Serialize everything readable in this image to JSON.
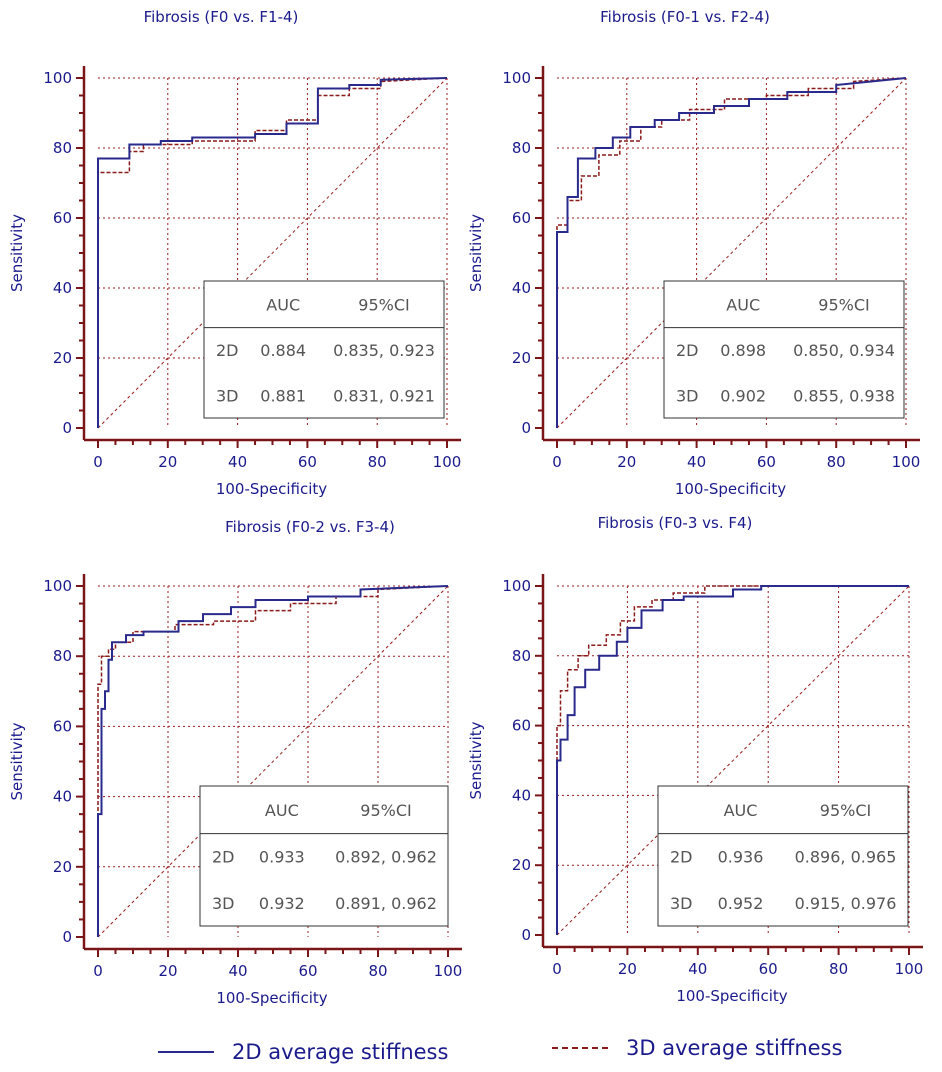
{
  "chart_data": [
    {
      "type": "line",
      "title": "Fibrosis (F0 vs. F1-4)",
      "xlabel": "100-Specificity",
      "ylabel": "Sensitivity",
      "xlim": [
        0,
        100
      ],
      "ylim": [
        0,
        100
      ],
      "xticks": [
        "0",
        "20",
        "40",
        "60",
        "80",
        "100"
      ],
      "yticks": [
        "0",
        "20",
        "40",
        "60",
        "80",
        "100"
      ],
      "grid": true,
      "series": [
        {
          "name": "2D average stiffness",
          "x": [
            0,
            0,
            9,
            9,
            18,
            18,
            27,
            27,
            45,
            45,
            54,
            54,
            63,
            63,
            72,
            72,
            81,
            81,
            100
          ],
          "y": [
            0,
            77,
            77,
            81,
            81,
            82,
            82,
            83,
            83,
            84,
            84,
            87,
            87,
            97,
            97,
            98,
            98,
            99.5,
            100
          ]
        },
        {
          "name": "3D average stiffness",
          "x": [
            0,
            0,
            9,
            9,
            13,
            13,
            27,
            27,
            45,
            45,
            54,
            54,
            63,
            63,
            72,
            72,
            81,
            81,
            100
          ],
          "y": [
            0,
            73,
            73,
            79,
            79,
            81,
            81,
            82,
            82,
            85,
            85,
            88,
            88,
            95,
            95,
            97,
            97,
            99,
            100
          ]
        }
      ],
      "auc_table": {
        "headers": [
          "",
          "AUC",
          "95%CI"
        ],
        "rows": [
          [
            "2D",
            "0.884",
            "0.835, 0.923"
          ],
          [
            "3D",
            "0.881",
            "0.831, 0.921"
          ]
        ]
      }
    },
    {
      "type": "line",
      "title": "Fibrosis (F0-1 vs. F2-4)",
      "xlabel": "100-Specificity",
      "ylabel": "Sensitivity",
      "xlim": [
        0,
        100
      ],
      "ylim": [
        0,
        100
      ],
      "xticks": [
        "0",
        "20",
        "40",
        "60",
        "80",
        "100"
      ],
      "yticks": [
        "0",
        "20",
        "40",
        "60",
        "80",
        "100"
      ],
      "grid": true,
      "series": [
        {
          "name": "2D average stiffness",
          "x": [
            0,
            0,
            3,
            3,
            6,
            6,
            11,
            11,
            16,
            16,
            21,
            21,
            28,
            28,
            35,
            35,
            45,
            45,
            55,
            55,
            66,
            66,
            80,
            80,
            100
          ],
          "y": [
            0,
            56,
            56,
            66,
            66,
            77,
            77,
            80,
            80,
            83,
            83,
            86,
            86,
            88,
            88,
            90,
            90,
            92,
            92,
            94,
            94,
            96,
            96,
            98,
            100
          ]
        },
        {
          "name": "3D average stiffness",
          "x": [
            0,
            0,
            3,
            3,
            7,
            7,
            12,
            12,
            18,
            18,
            24,
            24,
            30,
            30,
            38,
            38,
            48,
            48,
            60,
            60,
            72,
            72,
            85,
            85,
            100
          ],
          "y": [
            0,
            58,
            58,
            65,
            65,
            72,
            72,
            78,
            78,
            82,
            82,
            86,
            86,
            88,
            88,
            91,
            91,
            94,
            94,
            95,
            95,
            97,
            97,
            99,
            100
          ]
        }
      ],
      "auc_table": {
        "headers": [
          "",
          "AUC",
          "95%CI"
        ],
        "rows": [
          [
            "2D",
            "0.898",
            "0.850, 0.934"
          ],
          [
            "3D",
            "0.902",
            "0.855, 0.938"
          ]
        ]
      }
    },
    {
      "type": "line",
      "title": "Fibrosis (F0-2 vs. F3-4)",
      "xlabel": "100-Specificity",
      "ylabel": "Sensitivity",
      "xlim": [
        0,
        100
      ],
      "ylim": [
        0,
        100
      ],
      "xticks": [
        "0",
        "20",
        "40",
        "60",
        "80",
        "100"
      ],
      "yticks": [
        "0",
        "20",
        "40",
        "60",
        "80",
        "100"
      ],
      "grid": true,
      "series": [
        {
          "name": "2D average stiffness",
          "x": [
            0,
            0,
            1,
            1,
            2,
            2,
            3,
            3,
            4,
            4,
            8,
            8,
            13,
            13,
            23,
            23,
            30,
            30,
            38,
            38,
            45,
            45,
            60,
            60,
            75,
            75,
            100
          ],
          "y": [
            0,
            35,
            35,
            65,
            65,
            70,
            70,
            79,
            79,
            84,
            84,
            86,
            86,
            87,
            87,
            90,
            90,
            92,
            92,
            94,
            94,
            96,
            96,
            97,
            97,
            99,
            100
          ]
        },
        {
          "name": "3D average stiffness",
          "x": [
            0,
            0,
            1,
            1,
            3,
            3,
            5,
            5,
            10,
            10,
            22,
            22,
            33,
            33,
            45,
            45,
            55,
            55,
            68,
            68,
            80,
            80,
            100
          ],
          "y": [
            0,
            72,
            72,
            80,
            80,
            82,
            82,
            84,
            84,
            87,
            87,
            89,
            89,
            90,
            90,
            93,
            93,
            95,
            95,
            97,
            97,
            99,
            100
          ]
        }
      ],
      "auc_table": {
        "headers": [
          "",
          "AUC",
          "95%CI"
        ],
        "rows": [
          [
            "2D",
            "0.933",
            "0.892, 0.962"
          ],
          [
            "3D",
            "0.932",
            "0.891, 0.962"
          ]
        ]
      }
    },
    {
      "type": "line",
      "title": "Fibrosis (F0-3 vs. F4)",
      "xlabel": "100-Specificity",
      "ylabel": "Sensitivity",
      "xlim": [
        0,
        100
      ],
      "ylim": [
        0,
        100
      ],
      "xticks": [
        "0",
        "20",
        "40",
        "60",
        "80",
        "100"
      ],
      "yticks": [
        "0",
        "20",
        "40",
        "60",
        "80",
        "100"
      ],
      "grid": true,
      "series": [
        {
          "name": "2D average stiffness",
          "x": [
            0,
            0,
            1,
            1,
            3,
            3,
            5,
            5,
            8,
            8,
            12,
            12,
            17,
            17,
            20,
            20,
            24,
            24,
            30,
            30,
            36,
            36,
            50,
            50,
            58,
            58,
            100
          ],
          "y": [
            0,
            50,
            50,
            56,
            56,
            63,
            63,
            71,
            71,
            76,
            76,
            80,
            80,
            84,
            84,
            88,
            88,
            93,
            93,
            96,
            96,
            97,
            97,
            99,
            99,
            100,
            100
          ]
        },
        {
          "name": "3D average stiffness",
          "x": [
            0,
            0,
            1,
            1,
            3,
            3,
            6,
            6,
            9,
            9,
            14,
            14,
            18,
            18,
            22,
            22,
            27,
            27,
            33,
            33,
            42,
            42,
            100
          ],
          "y": [
            0,
            60,
            60,
            70,
            70,
            76,
            76,
            80,
            80,
            83,
            83,
            86,
            86,
            90,
            90,
            94,
            94,
            96,
            96,
            98,
            98,
            100,
            100
          ]
        }
      ],
      "auc_table": {
        "headers": [
          "",
          "AUC",
          "95%CI"
        ],
        "rows": [
          [
            "2D",
            "0.936",
            "0.896, 0.965"
          ],
          [
            "3D",
            "0.952",
            "0.915, 0.976"
          ]
        ]
      }
    }
  ],
  "legend": {
    "items": [
      {
        "label": "2D average stiffness",
        "color": "#2a2a8c",
        "style": "solid"
      },
      {
        "label": "3D average stiffness",
        "color": "#8b1a1a",
        "style": "dashed"
      }
    ]
  },
  "colors": {
    "axis": "#7a1518",
    "grid": "#9b1b1b",
    "text": "#1a1a8c",
    "table_text": "#555555",
    "series_2d": "#2a2a8c",
    "series_3d": "#8b1a1a"
  }
}
